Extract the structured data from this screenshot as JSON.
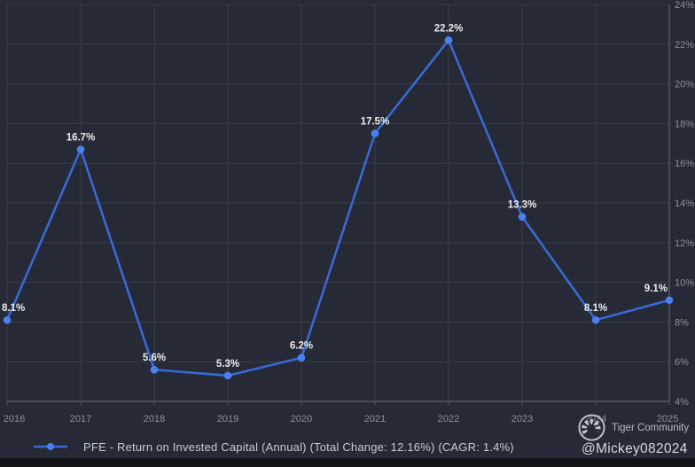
{
  "chart_data": {
    "type": "line",
    "title": "",
    "x_labels": [
      "2016",
      "2017",
      "2018",
      "2019",
      "2020",
      "2021",
      "2022",
      "2023",
      "2024",
      "2025"
    ],
    "series": [
      {
        "name": "PFE - Return on Invested Capital (Annual)",
        "values": [
          8.1,
          16.7,
          5.6,
          5.3,
          6.2,
          17.5,
          22.2,
          13.3,
          8.1,
          9.1
        ],
        "point_labels": [
          "8.1%",
          "16.7%",
          "5.6%",
          "5.3%",
          "6.2%",
          "17.5%",
          "22.2%",
          "13.3%",
          "8.1%",
          "9.1%"
        ]
      }
    ],
    "y_axis": {
      "side": "right",
      "min": 4,
      "max": 24,
      "step": 2,
      "tick_labels": [
        "4%",
        "6%",
        "8%",
        "10%",
        "12%",
        "14%",
        "16%",
        "18%",
        "20%",
        "22%",
        "24%"
      ]
    },
    "grid": true,
    "legend_position": "bottom-left"
  },
  "legend": {
    "label": "PFE - Return on Invested Capital (Annual) (Total Change: 12.16%) (CAGR: 1.4%)"
  },
  "watermark": {
    "community_label": "Tiger Community",
    "user_handle": "@Mickey082024"
  },
  "colors": {
    "background": "#262936",
    "grid": "#3a3d49",
    "axis": "#555866",
    "line": "#3a68d2",
    "marker": "#4b80ef",
    "point_label": "#ebecee",
    "tick_label": "#8d909c",
    "legend_text": "#c9ccd2",
    "watermark_text": "#b8bac0",
    "handle_text": "#d8d9dd",
    "bottom_band": "#131419"
  }
}
